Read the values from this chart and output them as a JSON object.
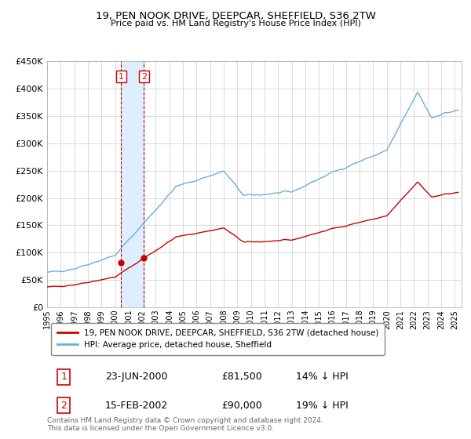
{
  "title": "19, PEN NOOK DRIVE, DEEPCAR, SHEFFIELD, S36 2TW",
  "subtitle": "Price paid vs. HM Land Registry's House Price Index (HPI)",
  "purchase1_date": "23-JUN-2000",
  "purchase1_price": 81500,
  "purchase1_label": "14% ↓ HPI",
  "purchase2_date": "15-FEB-2002",
  "purchase2_price": 90000,
  "purchase2_label": "19% ↓ HPI",
  "legend1": "19, PEN NOOK DRIVE, DEEPCAR, SHEFFIELD, S36 2TW (detached house)",
  "legend2": "HPI: Average price, detached house, Sheffield",
  "footer": "Contains HM Land Registry data © Crown copyright and database right 2024.\nThis data is licensed under the Open Government Licence v3.0.",
  "hpi_color": "#6baed6",
  "price_color": "#cc0000",
  "marker_color": "#cc0000",
  "vspan_color": "#ddeeff",
  "vline_color": "#cc0000",
  "grid_color": "#cccccc",
  "background_color": "#ffffff",
  "ylim": [
    0,
    450000
  ],
  "yticks": [
    0,
    50000,
    100000,
    150000,
    200000,
    250000,
    300000,
    350000,
    400000,
    450000
  ],
  "start_year": 1995.0,
  "end_year": 2025.5
}
